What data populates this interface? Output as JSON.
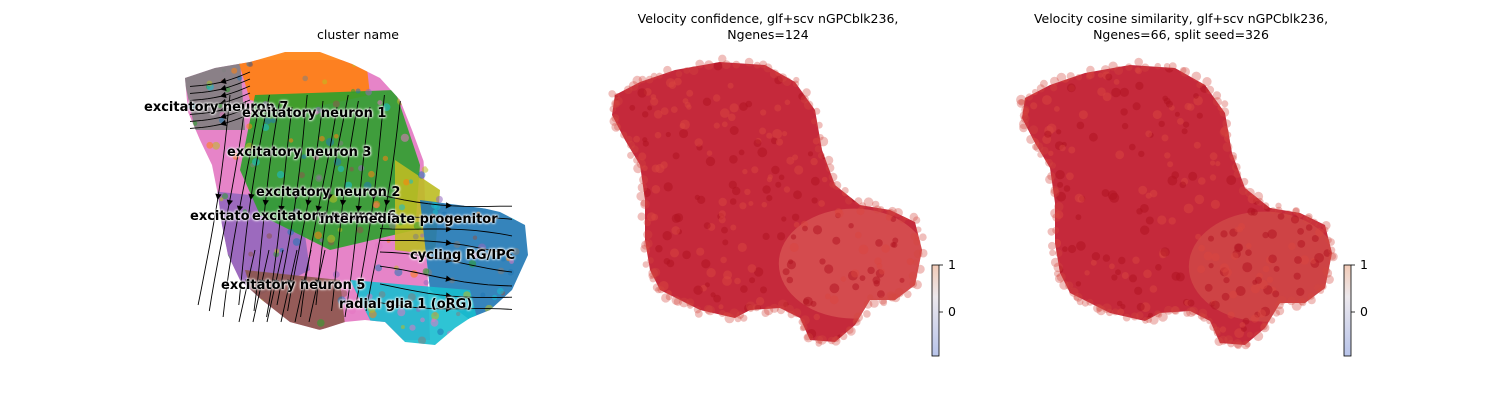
{
  "chart_data": [
    {
      "type": "scatter",
      "title": "cluster name",
      "clusters": [
        {
          "name": "excitatory neuron 7",
          "color": "#7f7f7f"
        },
        {
          "name": "excitatory neuron 1",
          "color": "#ff7f0e"
        },
        {
          "name": "excitatory neuron 3",
          "color": "#e377c2"
        },
        {
          "name": "excitatory neuron 2",
          "color": "#2ca02c"
        },
        {
          "name": "excitatory neuron 4",
          "color": "#9467bd"
        },
        {
          "name": "excitatory neuron 6",
          "color": "#bcbd22"
        },
        {
          "name": "intermediate progenitor",
          "color": "#17becf"
        },
        {
          "name": "cycling RG/IPC",
          "color": "#1f77b4"
        },
        {
          "name": "excitatory neuron 5",
          "color": "#8c564b"
        },
        {
          "name": "radial glia 1 (oRG)",
          "color": "#17becf"
        }
      ],
      "label_texts": {
        "en7": "excitatory neuron 7",
        "en1": "excitatory neuron 1",
        "en3": "excitatory neuron 3",
        "en2": "excitatory neuron 2",
        "en4": "excitato",
        "en6": "excitatory neuron 6",
        "ip": "intermediate progenitor",
        "cyc": "cycling RG/IPC",
        "en5": "excitatory neuron 5",
        "rg": "radial glia 1 (oRG)"
      },
      "overlay": "velocity streamlines"
    },
    {
      "type": "scatter",
      "title_line1": "Velocity confidence, glf+scv nGPCblk236,",
      "title_line2": "Ngenes=124",
      "colorbar": {
        "ticks": [
          "1",
          "0"
        ],
        "colormap": "coolwarm",
        "range": [
          -1,
          1
        ]
      },
      "point_color": "#c0172a"
    },
    {
      "type": "scatter",
      "title_line1": "Velocity cosine similarity, glf+scv nGPCblk236,",
      "title_line2": "Ngenes=66, split seed=326",
      "colorbar": {
        "ticks": [
          "1",
          "0"
        ],
        "colormap": "coolwarm",
        "range": [
          -1,
          1
        ]
      },
      "point_color": "#c0172a"
    }
  ]
}
